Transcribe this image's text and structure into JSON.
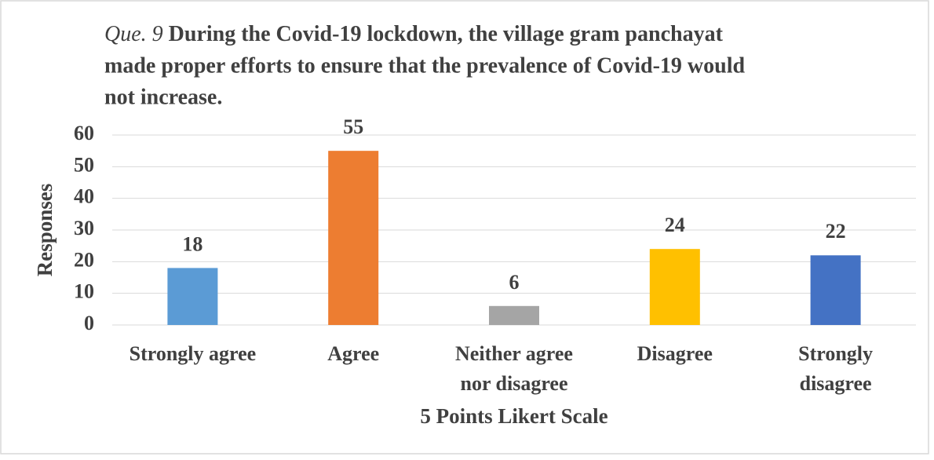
{
  "chart_data": {
    "type": "bar",
    "title_label": "Que. 9",
    "title_lines": [
      "During the Covid-19 lockdown, the village gram panchayat",
      "made proper efforts to ensure that the prevalence of Covid-19 would",
      "not increase."
    ],
    "x_label": "5 Points Likert Scale",
    "y_label": "Responses",
    "categories": [
      [
        "Strongly agree"
      ],
      [
        "Agree"
      ],
      [
        "Neither agree",
        "nor disagree"
      ],
      [
        "Disagree"
      ],
      [
        "Strongly",
        "disagree"
      ]
    ],
    "values": [
      18,
      55,
      6,
      24,
      22
    ],
    "colors": [
      "#5b9bd5",
      "#ed7d31",
      "#a5a5a5",
      "#ffc000",
      "#4472c4"
    ],
    "ylim": [
      0,
      60
    ],
    "yticks": [
      0,
      10,
      20,
      30,
      40,
      50,
      60
    ],
    "grid": true
  }
}
